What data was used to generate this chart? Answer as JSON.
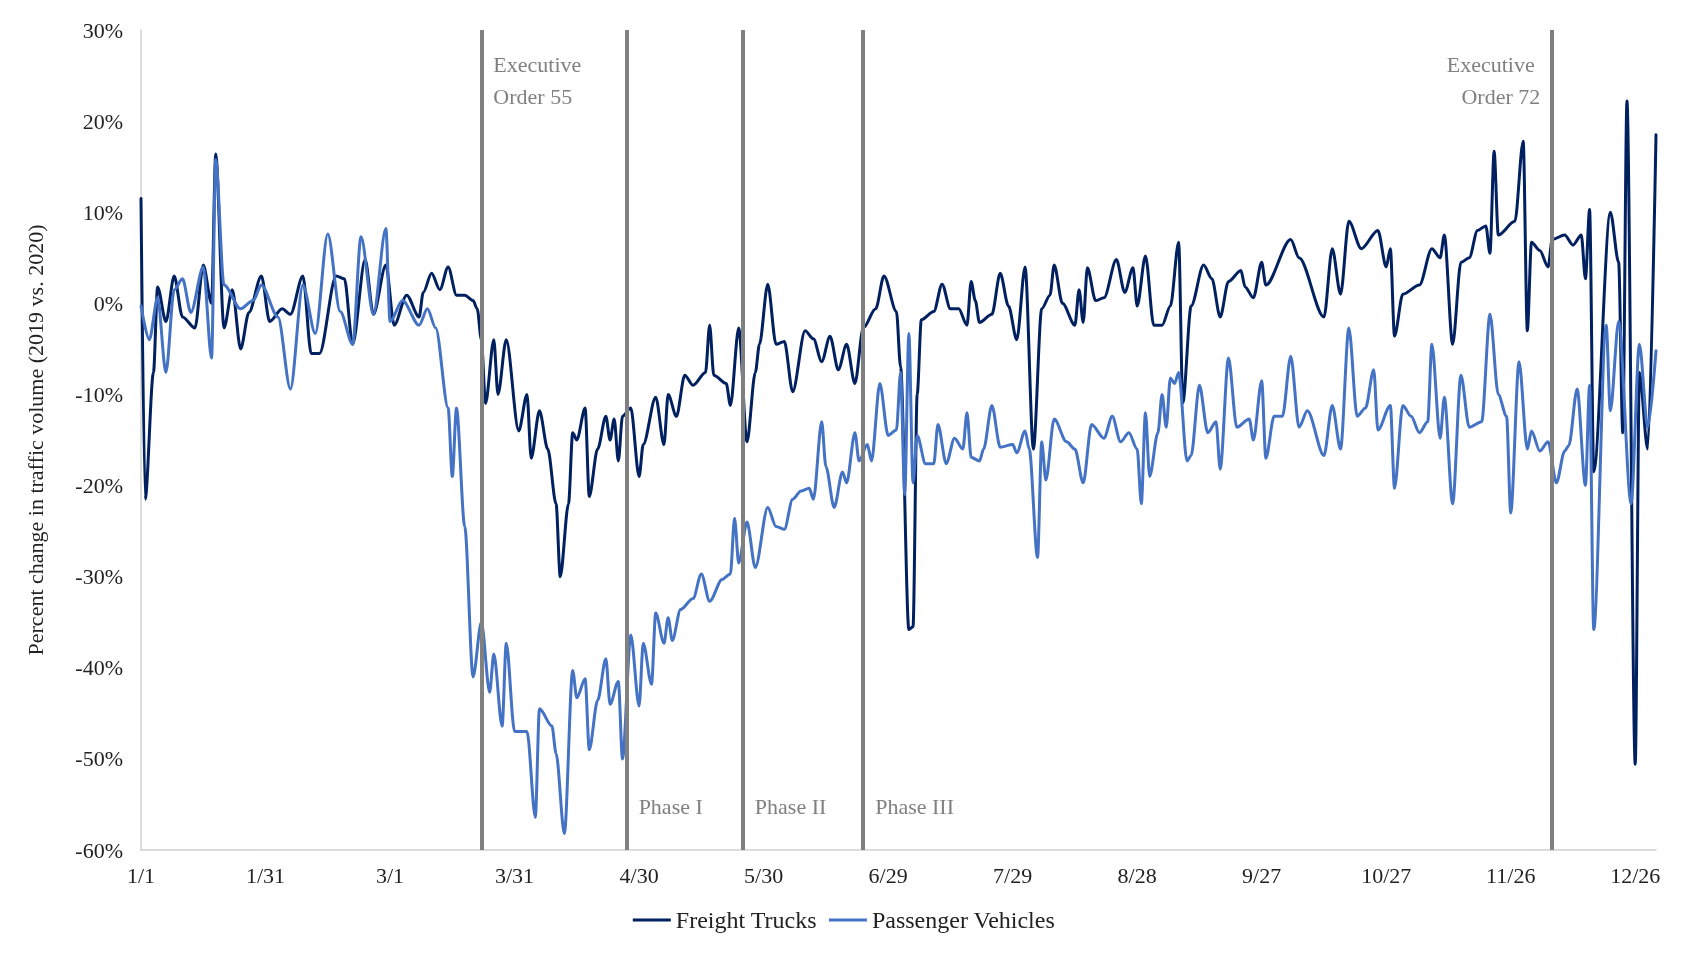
{
  "chart_data": {
    "type": "line",
    "ylabel": "Percent change in traffic volume (2019 vs. 2020)",
    "xlim": [
      "--01-01",
      "--12-31"
    ],
    "xticks": [
      {
        "value": "--01-01",
        "label": "1/1"
      },
      {
        "value": "--01-31",
        "label": "1/31"
      },
      {
        "value": "--03-01",
        "label": "3/1"
      },
      {
        "value": "--03-31",
        "label": "3/31"
      },
      {
        "value": "--04-30",
        "label": "4/30"
      },
      {
        "value": "--05-30",
        "label": "5/30"
      },
      {
        "value": "--06-29",
        "label": "6/29"
      },
      {
        "value": "--07-29",
        "label": "7/29"
      },
      {
        "value": "--08-28",
        "label": "8/28"
      },
      {
        "value": "--09-27",
        "label": "9/27"
      },
      {
        "value": "--10-27",
        "label": "10/27"
      },
      {
        "value": "--11-26",
        "label": "11/26"
      },
      {
        "value": "--12-26",
        "label": "12/26"
      }
    ],
    "ylim": [
      -60,
      30
    ],
    "yticks": [
      {
        "value": -60,
        "label": "-60%"
      },
      {
        "value": -50,
        "label": "-50%"
      },
      {
        "value": -40,
        "label": "-40%"
      },
      {
        "value": -30,
        "label": "-30%"
      },
      {
        "value": -20,
        "label": "-20%"
      },
      {
        "value": -10,
        "label": "-10%"
      },
      {
        "value": 0,
        "label": "0%"
      },
      {
        "value": 10,
        "label": "10%"
      },
      {
        "value": 20,
        "label": "20%"
      },
      {
        "value": 30,
        "label": "30%"
      }
    ],
    "grid": false,
    "legend": "bottom",
    "marker": "none",
    "line_style": "solid",
    "ref_lines": [
      {
        "axis": "x",
        "value": "--03-23",
        "label": "Executive Order 55",
        "color": "#808080"
      },
      {
        "axis": "x",
        "value": "--04-27",
        "label": "Phase I",
        "color": "#808080"
      },
      {
        "axis": "x",
        "value": "--05-25",
        "label": "Phase II",
        "color": "#808080"
      },
      {
        "axis": "x",
        "value": "--06-23",
        "label": "Phase III",
        "color": "#808080"
      },
      {
        "axis": "x",
        "value": "--12-06",
        "label": "Executive Order 72",
        "color": "#808080"
      }
    ],
    "series": [
      {
        "name": "Freight Trucks",
        "color": "#002060",
        "x": [
          "--01-01",
          "--01-02",
          "--01-04",
          "--01-05",
          "--01-07",
          "--01-09",
          "--01-11",
          "--01-14",
          "--01-16",
          "--01-18",
          "--01-19",
          "--01-21",
          "--01-23",
          "--01-25",
          "--01-27",
          "--01-30",
          "--02-01",
          "--02-04",
          "--02-06",
          "--02-09",
          "--02-11",
          "--02-13",
          "--02-17",
          "--02-19",
          "--02-21",
          "--02-24",
          "--02-26",
          "--02-29",
          "--03-02",
          "--03-05",
          "--03-08",
          "--03-09",
          "--03-11",
          "--03-13",
          "--03-15",
          "--03-17",
          "--03-19",
          "--03-21",
          "--03-22",
          "--03-23",
          "--03-24",
          "--03-26",
          "--03-27",
          "--03-29",
          "--04-01",
          "--04-03",
          "--04-04",
          "--04-06",
          "--04-08",
          "--04-10",
          "--04-11",
          "--04-13",
          "--04-14",
          "--04-15",
          "--04-17",
          "--04-18",
          "--04-20",
          "--04-22",
          "--04-23",
          "--04-24",
          "--04-25",
          "--04-26",
          "--04-28",
          "--04-30",
          "--05-01",
          "--05-04",
          "--05-06",
          "--05-07",
          "--05-09",
          "--05-11",
          "--05-13",
          "--05-16",
          "--05-17",
          "--05-18",
          "--05-21",
          "--05-22",
          "--05-24",
          "--05-26",
          "--05-28",
          "--05-29",
          "--05-31",
          "--06-02",
          "--06-04",
          "--06-06",
          "--06-09",
          "--06-11",
          "--06-13",
          "--06-15",
          "--06-17",
          "--06-19",
          "--06-21",
          "--06-23",
          "--06-26",
          "--06-28",
          "--07-01",
          "--07-02",
          "--07-04",
          "--07-05",
          "--07-06",
          "--07-07",
          "--07-10",
          "--07-12",
          "--07-14",
          "--07-16",
          "--07-18",
          "--07-19",
          "--07-20",
          "--07-21",
          "--07-24",
          "--07-26",
          "--07-28",
          "--07-30",
          "--08-01",
          "--08-03",
          "--08-05",
          "--08-07",
          "--08-08",
          "--08-10",
          "--08-13",
          "--08-14",
          "--08-15",
          "--08-16",
          "--08-18",
          "--08-20",
          "--08-23",
          "--08-25",
          "--08-27",
          "--08-28",
          "--08-30",
          "--09-01",
          "--09-03",
          "--09-05",
          "--09-07",
          "--09-08",
          "--09-10",
          "--09-13",
          "--09-15",
          "--09-17",
          "--09-19",
          "--09-22",
          "--09-23",
          "--09-25",
          "--09-27",
          "--09-28",
          "--10-04",
          "--10-06",
          "--10-12",
          "--10-14",
          "--10-16",
          "--10-18",
          "--10-21",
          "--10-25",
          "--10-27",
          "--10-28",
          "--10-29",
          "--10-31",
          "--11-04",
          "--11-07",
          "--11-09",
          "--11-10",
          "--11-12",
          "--11-14",
          "--11-16",
          "--11-18",
          "--11-20",
          "--11-21",
          "--11-22",
          "--11-23",
          "--11-27",
          "--11-29",
          "--11-30",
          "--12-01",
          "--12-03",
          "--12-05",
          "--12-06",
          "--12-09",
          "--12-11",
          "--12-13",
          "--12-14",
          "--12-15",
          "--12-16",
          "--12-20",
          "--12-22",
          "--12-23",
          "--12-24",
          "--12-26",
          "--12-27",
          "--12-29",
          "--12-31"
        ],
        "values": [
          11.5,
          -21.5,
          -7.6,
          1.8,
          -2,
          3,
          -1.5,
          -2.7,
          4.2,
          0,
          16.4,
          -2.7,
          1.5,
          -5,
          -1,
          3,
          -2,
          -0.6,
          -1.2,
          3,
          -5.5,
          -5.5,
          3,
          2.7,
          -4.5,
          4.8,
          -1.2,
          4.2,
          -2.4,
          0.9,
          -1.5,
          1.2,
          3.3,
          1.5,
          4,
          0.9,
          0.9,
          0.3,
          -0.6,
          -4,
          -11,
          -4,
          -10,
          -4,
          -14,
          -10,
          -17,
          -11.8,
          -16,
          -22,
          -30,
          -22,
          -14.2,
          -15,
          -11.5,
          -21.2,
          -16,
          -12.4,
          -15,
          -12.7,
          -17.3,
          -12.4,
          -11.5,
          -19,
          -15.5,
          -10.3,
          -15.5,
          -10,
          -12.4,
          -7.9,
          -9,
          -7.6,
          -2.4,
          -7.9,
          -8.8,
          -11.2,
          -2.7,
          -15.2,
          -7.6,
          -4.5,
          2.1,
          -4.5,
          -4.2,
          -9.7,
          -3,
          -3.9,
          -6.4,
          -3.6,
          -7.3,
          -4.5,
          -8.8,
          -2.7,
          -0.6,
          3,
          -0.9,
          -7,
          -35.8,
          -35.5,
          -10,
          -1.8,
          -0.9,
          2.1,
          -0.6,
          -0.6,
          -2.4,
          2.4,
          0.3,
          -2.1,
          -1.2,
          3.3,
          -0.3,
          -4,
          4,
          -16,
          -0.6,
          0.9,
          4.2,
          0,
          -2.4,
          1.5,
          -2.1,
          3.9,
          0.3,
          0.6,
          4.8,
          1.2,
          3.9,
          -0.3,
          5.2,
          -2.4,
          -2.4,
          -0.3,
          6.7,
          -10.9,
          -0.3,
          4.2,
          2.7,
          -1.5,
          2.4,
          3.6,
          1.8,
          0.6,
          4.5,
          2,
          7,
          5,
          -1.5,
          6,
          1,
          9,
          6,
          8,
          4,
          6,
          -3.6,
          1,
          2,
          6,
          5,
          7.5,
          -4.5,
          4.5,
          5,
          8,
          8.5,
          5.5,
          16.7,
          7.5,
          9,
          17.8,
          -3,
          6.7,
          5.8,
          4,
          7,
          7.5,
          6.4,
          7.5,
          2.7,
          10.3,
          -18.5,
          10,
          4.5,
          -14.2,
          22.2,
          -50.6,
          -7.6,
          -16,
          18.5
        ]
      },
      {
        "name": "Passenger Vehicles",
        "color": "#4472c4",
        "x": [
          "--01-01",
          "--01-03",
          "--01-05",
          "--01-07",
          "--01-09",
          "--01-11",
          "--01-13",
          "--01-16",
          "--01-18",
          "--01-19",
          "--01-21",
          "--01-25",
          "--01-28",
          "--01-30",
          "--02-03",
          "--02-06",
          "--02-09",
          "--02-12",
          "--02-15",
          "--02-18",
          "--02-21",
          "--02-23",
          "--02-26",
          "--02-29",
          "--03-01",
          "--03-04",
          "--03-08",
          "--03-10",
          "--03-12",
          "--03-15",
          "--03-16",
          "--03-17",
          "--03-19",
          "--03-21",
          "--03-23",
          "--03-25",
          "--03-26",
          "--03-28",
          "--03-29",
          "--03-31",
          "--04-03",
          "--04-05",
          "--04-06",
          "--04-09",
          "--04-10",
          "--04-12",
          "--04-14",
          "--04-15",
          "--04-17",
          "--04-18",
          "--04-20",
          "--04-22",
          "--04-23",
          "--04-25",
          "--04-26",
          "--04-28",
          "--04-30",
          "--05-01",
          "--05-03",
          "--05-04",
          "--05-06",
          "--05-07",
          "--05-08",
          "--05-10",
          "--05-13",
          "--05-15",
          "--05-17",
          "--05-20",
          "--05-22",
          "--05-23",
          "--05-24",
          "--05-26",
          "--05-28",
          "--05-31",
          "--06-02",
          "--06-04",
          "--06-06",
          "--06-08",
          "--06-10",
          "--06-11",
          "--06-13",
          "--06-14",
          "--06-16",
          "--06-18",
          "--06-19",
          "--06-21",
          "--06-22",
          "--06-24",
          "--06-25",
          "--06-27",
          "--06-29",
          "--07-01",
          "--07-02",
          "--07-03",
          "--07-04",
          "--07-05",
          "--07-06",
          "--07-08",
          "--07-10",
          "--07-11",
          "--07-13",
          "--07-15",
          "--07-17",
          "--07-18",
          "--07-19",
          "--07-21",
          "--07-22",
          "--07-24",
          "--07-26",
          "--07-29",
          "--07-30",
          "--08-01",
          "--08-02",
          "--08-04",
          "--08-05",
          "--08-06",
          "--08-08",
          "--08-11",
          "--08-13",
          "--08-15",
          "--08-17",
          "--08-20",
          "--08-22",
          "--08-24",
          "--08-26",
          "--08-28",
          "--08-29",
          "--08-30",
          "--08-31",
          "--09-02",
          "--09-03",
          "--09-04",
          "--09-05",
          "--09-06",
          "--09-07",
          "--09-09",
          "--09-10",
          "--09-12",
          "--09-14",
          "--09-16",
          "--09-17",
          "--09-19",
          "--09-21",
          "--09-24",
          "--09-25",
          "--09-27",
          "--09-28",
          "--09-30",
          "--10-02",
          "--10-04",
          "--10-06",
          "--10-08",
          "--10-12",
          "--10-14",
          "--10-16",
          "--10-18",
          "--10-20",
          "--10-22",
          "--10-24",
          "--10-25",
          "--10-28",
          "--10-29",
          "--10-31",
          "--11-02",
          "--11-04",
          "--11-06",
          "--11-07",
          "--11-09",
          "--11-10",
          "--11-12",
          "--11-14",
          "--11-16",
          "--11-19",
          "--11-21",
          "--11-23",
          "--11-25",
          "--11-26",
          "--11-28",
          "--11-30",
          "--12-01",
          "--12-03",
          "--12-05",
          "--12-07",
          "--12-09",
          "--12-10",
          "--12-12",
          "--12-14",
          "--12-15",
          "--12-16",
          "--12-19",
          "--12-20",
          "--12-22",
          "--12-25",
          "--12-27",
          "--12-29",
          "--12-31"
        ],
        "values": [
          -0.3,
          -4,
          0.6,
          -7.6,
          1.5,
          2.7,
          -1,
          4,
          -6,
          15.8,
          2,
          -0.6,
          0.3,
          2,
          -1.5,
          -9.4,
          2,
          -3.3,
          7.6,
          -0.9,
          -4.5,
          7.3,
          -1.2,
          8.2,
          -2,
          0.3,
          -2.4,
          -0.6,
          -2.7,
          -11.5,
          -19,
          -11.5,
          -24.5,
          -41,
          -35,
          -42.7,
          -38.5,
          -46.4,
          -37.3,
          -47,
          -47,
          -56.4,
          -44.5,
          -46.4,
          -49.4,
          -58.2,
          -40.3,
          -43.3,
          -41.2,
          -49,
          -43.6,
          -39,
          -44,
          -41.5,
          -50,
          -36.4,
          -44.2,
          -37.3,
          -41.8,
          -34,
          -37.3,
          -34.5,
          -37,
          -33.6,
          -32.4,
          -29.7,
          -32.7,
          -30.3,
          -29.7,
          -23.6,
          -28.5,
          -24,
          -29,
          -22.4,
          -24.5,
          -24.8,
          -21.5,
          -20.6,
          -20.3,
          -21.5,
          -13,
          -17.9,
          -22.4,
          -18.5,
          -19.7,
          -14.2,
          -17.3,
          -15.5,
          -17.3,
          -8.8,
          -14.5,
          -13.9,
          -7.6,
          -21,
          -3.3,
          -19.7,
          -14.5,
          -17.6,
          -17.6,
          -13.3,
          -17.6,
          -14.8,
          -16,
          -12,
          -16.9,
          -17.3,
          -16,
          -11.2,
          -15.8,
          -15.5,
          -16.4,
          -14,
          -16,
          -27.9,
          -15.2,
          -19.4,
          -12.7,
          -15.2,
          -16,
          -19.7,
          -13.3,
          -14.8,
          -12.4,
          -15.2,
          -14.2,
          -16,
          -22,
          -12,
          -19,
          -14.2,
          -10,
          -13.6,
          -8.2,
          -8.8,
          -7.6,
          -17.3,
          -16.7,
          -9,
          -14.2,
          -13,
          -18.2,
          -6,
          -13.6,
          -12.7,
          -15,
          -8.5,
          -17,
          -12.4,
          -12.4,
          -5.8,
          -13.6,
          -11.8,
          -16.7,
          -11.2,
          -16,
          -2.7,
          -12.4,
          -11.5,
          -7.3,
          -13.9,
          -11.2,
          -20.3,
          -11.2,
          -12.4,
          -14.2,
          -13,
          -4.5,
          -14.8,
          -10.3,
          -22,
          -7.9,
          -13.6,
          -13,
          -1.2,
          -10,
          -12.4,
          -23,
          -6.4,
          -16,
          -14,
          -16.2,
          -15.2,
          -19.7,
          -16.2,
          -15.6,
          -9.4,
          -20,
          -9,
          -35.8,
          -2.4,
          -11.8,
          -2,
          -22,
          -4.5,
          -13.6,
          -5.2
        ]
      }
    ]
  }
}
